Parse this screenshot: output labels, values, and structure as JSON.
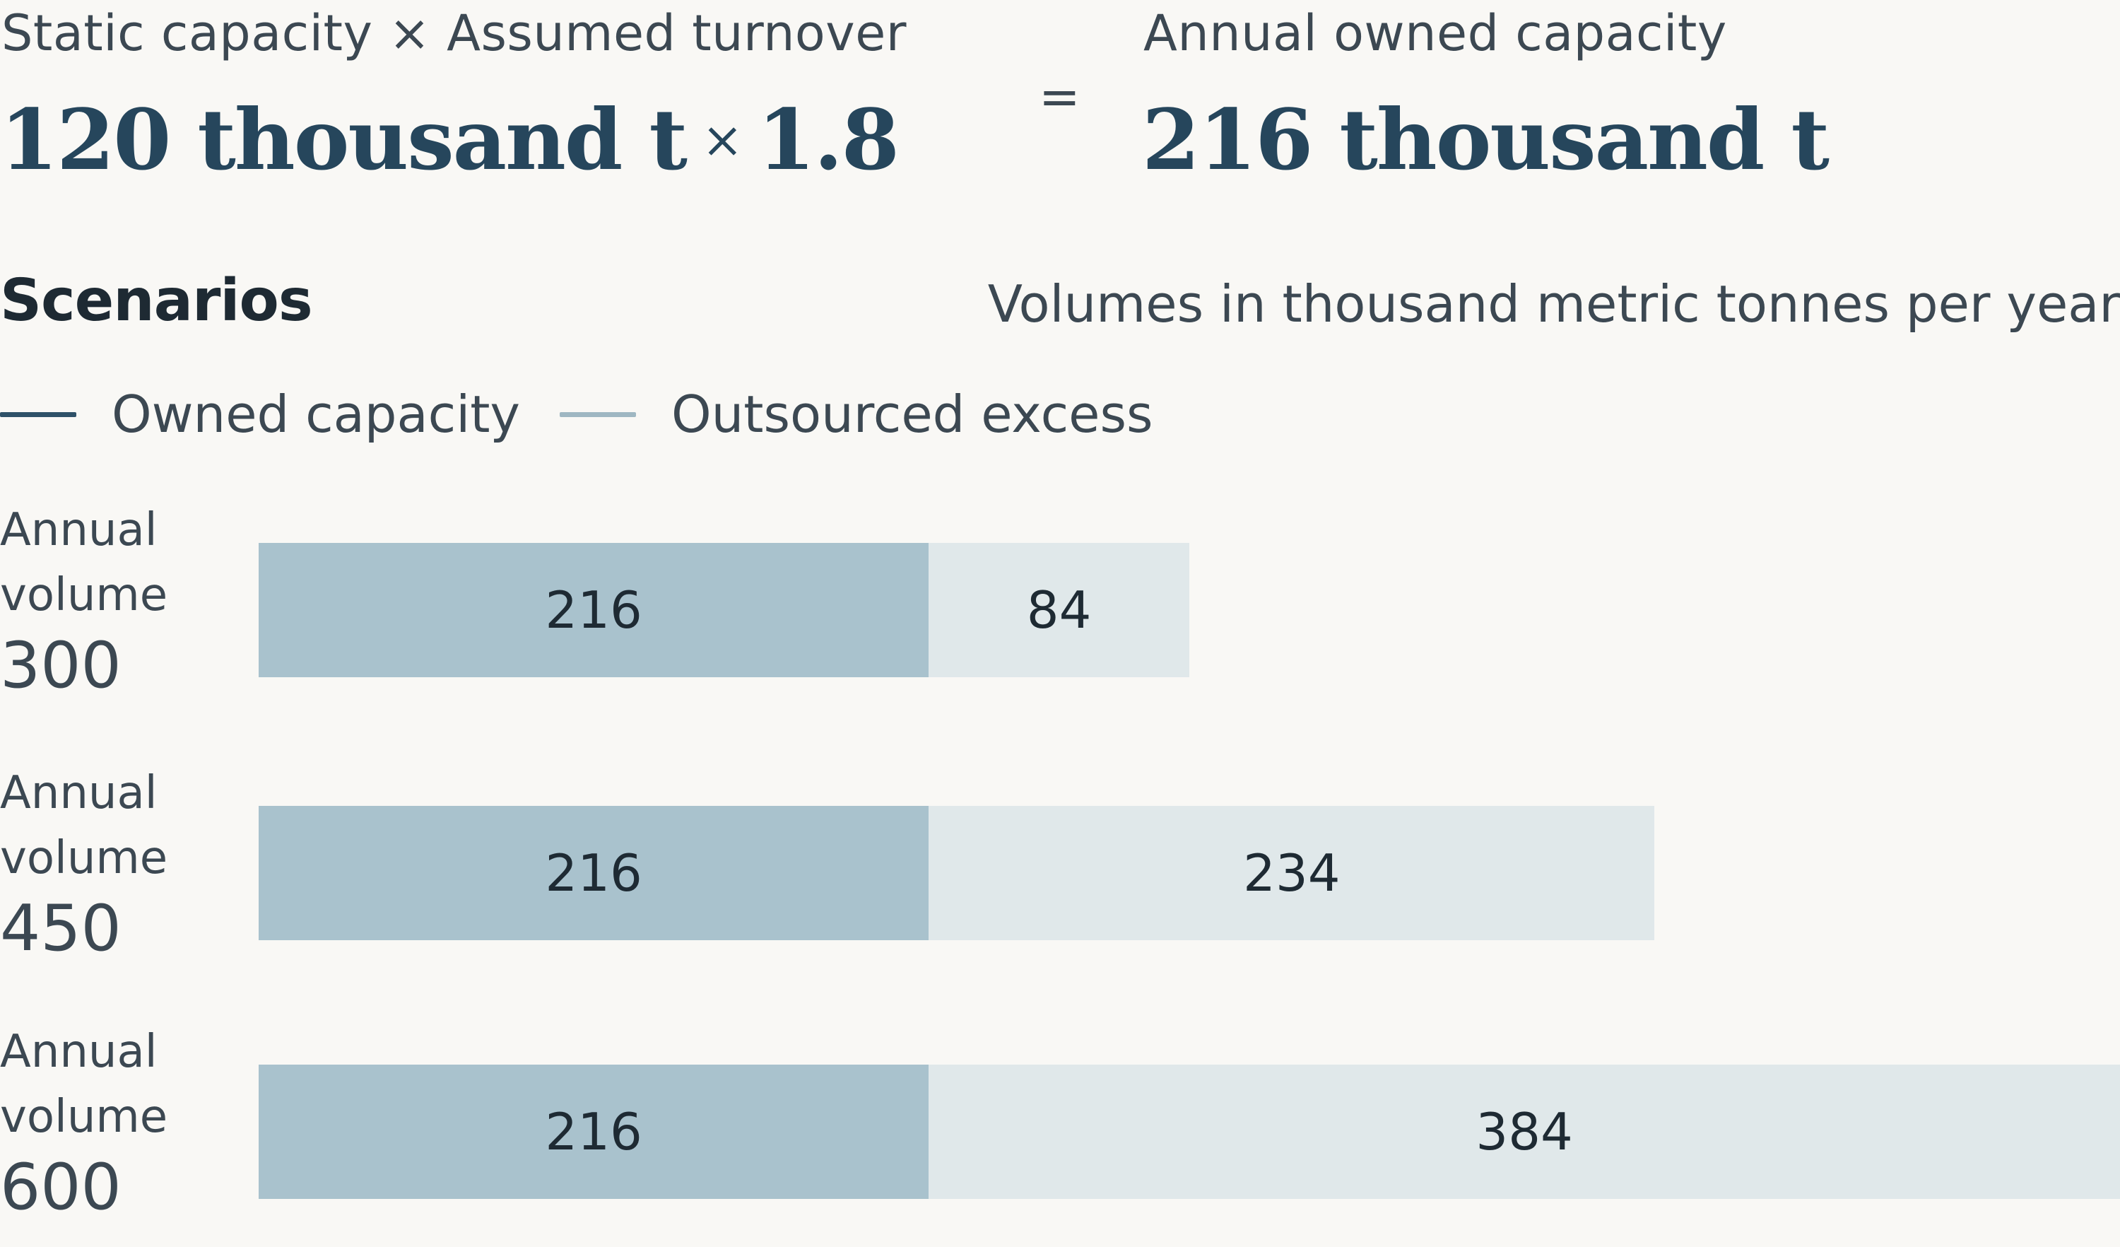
{
  "formula": {
    "left_label": "Static capacity × Assumed turnover",
    "left_value": "120 thousand t",
    "times_sign": "×",
    "turnover": "1.8",
    "equals": "=",
    "right_label": "Annual owned capacity",
    "right_value": "216 thousand t"
  },
  "section_title": "Scenarios",
  "units_note": "Volumes in thousand metric tonnes per year",
  "colors": {
    "owned": "#a9c2cd",
    "outsourced": "#e0e8ea",
    "owned_legend": "#2f5168",
    "outsourced_legend": "#9fb7c2"
  },
  "chart_data": {
    "type": "bar",
    "orientation": "horizontal",
    "stacked": true,
    "categories": [
      "300",
      "450",
      "600"
    ],
    "category_prefix": [
      "Annual",
      "volume"
    ],
    "series": [
      {
        "name": "Owned capacity",
        "values": [
          216,
          216,
          216
        ]
      },
      {
        "name": "Outsourced excess",
        "values": [
          84,
          234,
          384
        ]
      }
    ],
    "xlim": [
      0,
      600
    ],
    "grid": false,
    "legend_position": "top-left"
  }
}
